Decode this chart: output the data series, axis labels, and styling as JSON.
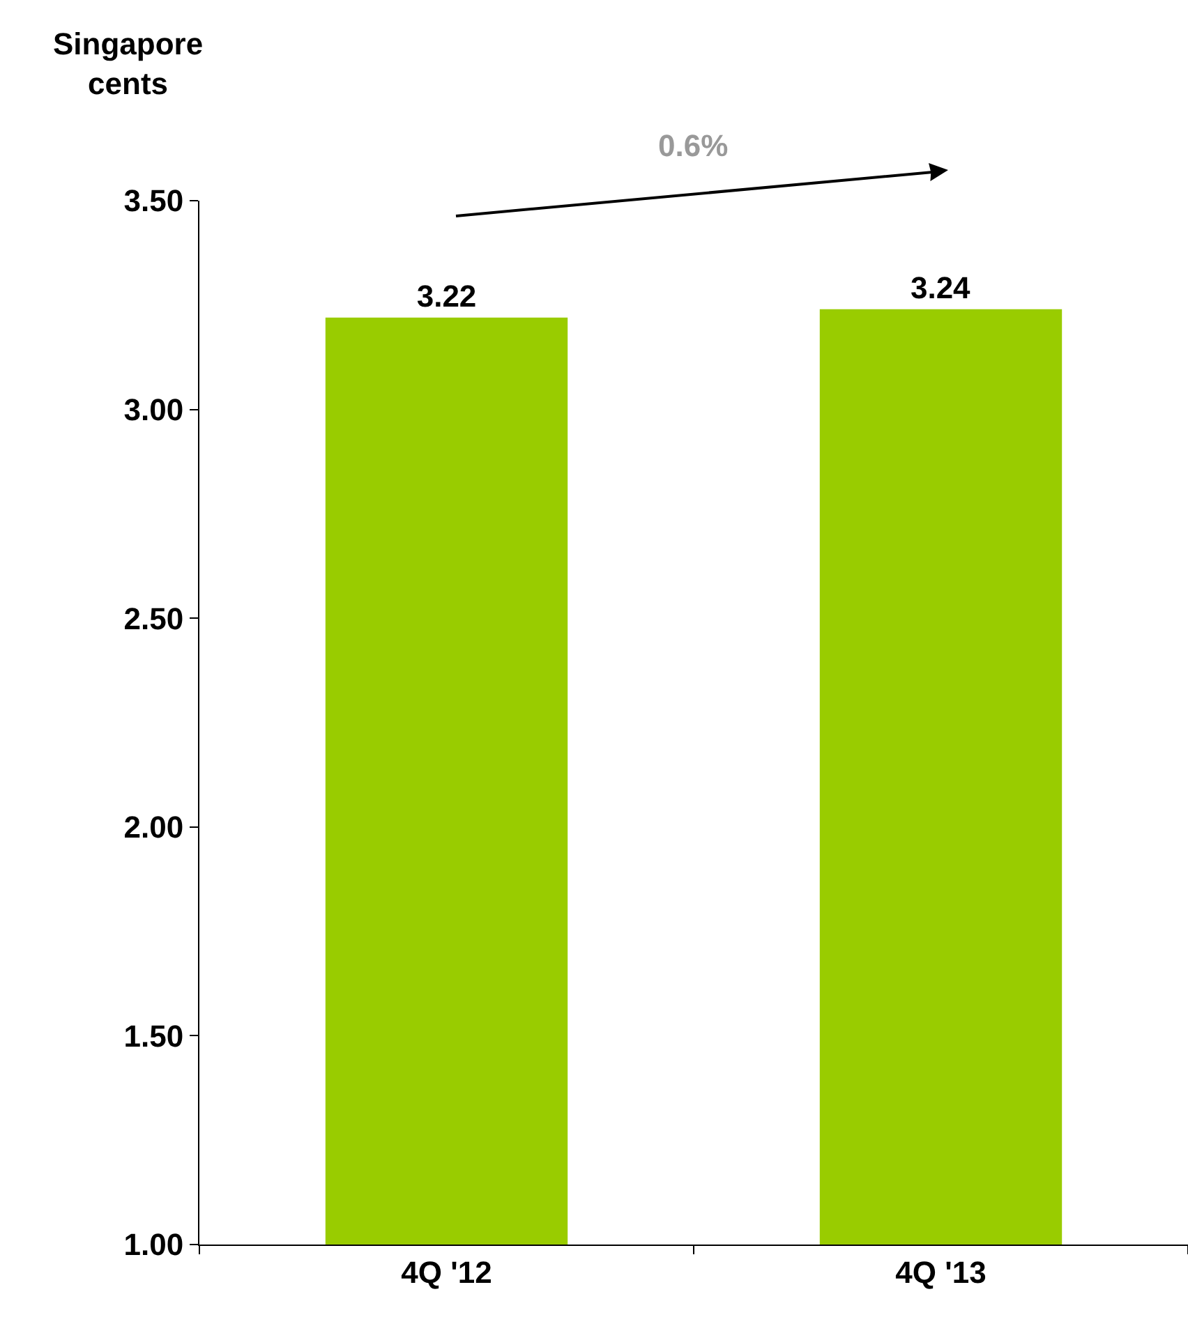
{
  "chart_data": {
    "type": "bar",
    "ylabel": "Singapore cents",
    "categories": [
      "4Q '12",
      "4Q '13"
    ],
    "values": [
      3.22,
      3.24
    ],
    "color": "#99cc00",
    "data_labels": true,
    "ylim": [
      1.0,
      3.5
    ],
    "yticks": [
      {
        "value": 1.0,
        "label": "1.00"
      },
      {
        "value": 1.5,
        "label": "1.50"
      },
      {
        "value": 2.0,
        "label": "2.00"
      },
      {
        "value": 2.5,
        "label": "2.50"
      },
      {
        "value": 3.0,
        "label": "3.00"
      },
      {
        "value": 3.5,
        "label": "3.50"
      }
    ],
    "annotations": [
      "0.6%"
    ]
  }
}
